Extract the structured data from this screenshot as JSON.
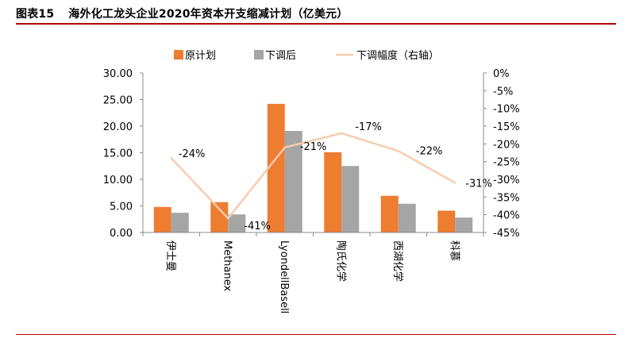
{
  "figure": {
    "number": "图表15",
    "title": "海外化工龙头企业2020年资本开支缩减计划（亿美元）"
  },
  "colors": {
    "original": "#ED7D31",
    "adjusted": "#A5A5A5",
    "ratio_line": "#F8CBAD",
    "rule": "#B30000"
  },
  "chart_data": {
    "type": "bar",
    "categories": [
      "伊士曼",
      "Methanex",
      "LyondellBasell",
      "陶氏化学",
      "西湖化学",
      "科慕"
    ],
    "series": [
      {
        "name": "原计划",
        "kind": "bar",
        "axis": "left",
        "values": [
          4.8,
          5.7,
          24.2,
          15.1,
          6.9,
          4.1
        ]
      },
      {
        "name": "下调后",
        "kind": "bar",
        "axis": "left",
        "values": [
          3.7,
          3.4,
          19.1,
          12.5,
          5.4,
          2.8
        ]
      },
      {
        "name": "下调幅度（右轴）",
        "kind": "line",
        "axis": "right",
        "values": [
          -24,
          -41,
          -21,
          -17,
          -22,
          -31
        ]
      }
    ],
    "data_labels": [
      "-24%",
      "-41%",
      "-21%",
      "-17%",
      "-22%",
      "-31%"
    ],
    "ylim": [
      0,
      30
    ],
    "y_ticks": [
      "0.00",
      "5.00",
      "10.00",
      "15.00",
      "20.00",
      "25.00",
      "30.00"
    ],
    "y2lim": [
      -45,
      0
    ],
    "y2_ticks": [
      "0%",
      "-5%",
      "-10%",
      "-15%",
      "-20%",
      "-25%",
      "-30%",
      "-35%",
      "-40%",
      "-45%"
    ],
    "legend_position": "top",
    "grid": false
  }
}
